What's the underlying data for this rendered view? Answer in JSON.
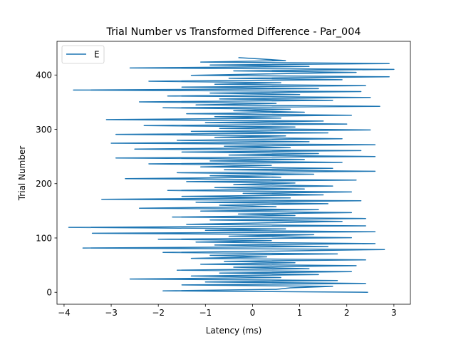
{
  "chart_data": {
    "type": "line",
    "title": "Trial Number vs Transformed Difference - Par_004",
    "xlabel": "Latency (ms)",
    "ylabel": "Trial Number",
    "xlim": [
      -4.15,
      3.35
    ],
    "ylim": [
      -22,
      462
    ],
    "grid": false,
    "legend_position": "top-left",
    "x_ticks": [
      -4,
      -3,
      -2,
      -1,
      0,
      1,
      2,
      3
    ],
    "x_tick_labels": [
      "−4",
      "−3",
      "−2",
      "−1",
      "0",
      "1",
      "2",
      "3"
    ],
    "y_ticks": [
      0,
      100,
      200,
      300,
      400
    ],
    "y_tick_labels": [
      "0",
      "100",
      "200",
      "300",
      "400"
    ],
    "series": [
      {
        "name": "E",
        "color": "#1f77b4",
        "y_start": 0,
        "x": [
          2.45,
          -1.9,
          0.5,
          0.8,
          1.7,
          -1.5,
          2.4,
          -1.0,
          1.8,
          -2.6,
          0.6,
          -1.3,
          1.4,
          -0.7,
          2.1,
          -1.6,
          1.2,
          -0.4,
          2.2,
          -1.1,
          0.9,
          -0.6,
          2.4,
          -1.3,
          0.3,
          -0.9,
          1.8,
          -1.9,
          0.7,
          2.8,
          -3.6,
          1.6,
          -0.8,
          2.6,
          -1.2,
          0.4,
          -2.0,
          2.1,
          -0.5,
          1.3,
          -3.4,
          2.6,
          -1.0,
          0.7,
          -3.9,
          2.4,
          -1.4,
          0.2,
          1.9,
          -0.9,
          2.4,
          -1.7,
          0.9,
          -0.3,
          2.1,
          -1.1,
          1.4,
          -2.4,
          0.5,
          -0.7,
          1.6,
          -1.2,
          2.3,
          -3.2,
          0.8,
          -1.5,
          1.5,
          -0.2,
          2.1,
          -1.8,
          1.1,
          -0.8,
          1.7,
          -0.4,
          0.9,
          -1.4,
          2.2,
          -2.7,
          0.6,
          -0.9,
          1.3,
          -1.6,
          2.6,
          -0.6,
          1.7,
          -1.1,
          0.4,
          -2.2,
          1.9,
          -0.9,
          1.1,
          -2.9,
          2.6,
          -0.5,
          1.4,
          -1.5,
          2.3,
          -2.5,
          0.8,
          -0.6,
          2.6,
          -3.0,
          1.2,
          -1.6,
          1.9,
          -0.8,
          0.7,
          -2.9,
          1.6,
          -1.3,
          2.5,
          -0.7,
          0.9,
          -2.3,
          2.0,
          -1.0,
          1.5,
          -3.1,
          0.6,
          -0.8,
          2.1,
          -1.4,
          1.1,
          -0.4,
          0.8,
          -1.9,
          2.7,
          -1.2,
          0.5,
          -2.4,
          1.7,
          -0.7,
          2.5,
          -1.8,
          1.0,
          -0.9,
          2.3,
          -3.8,
          1.4,
          -1.5,
          2.4,
          -0.8,
          0.6,
          -2.2,
          1.9,
          -0.5,
          2.9,
          -1.3,
          0.3,
          2.2,
          -0.4,
          3.0,
          -2.6,
          1.2,
          -0.9,
          2.9,
          -1.1,
          0.7,
          0.2,
          -0.3
        ]
      }
    ]
  }
}
